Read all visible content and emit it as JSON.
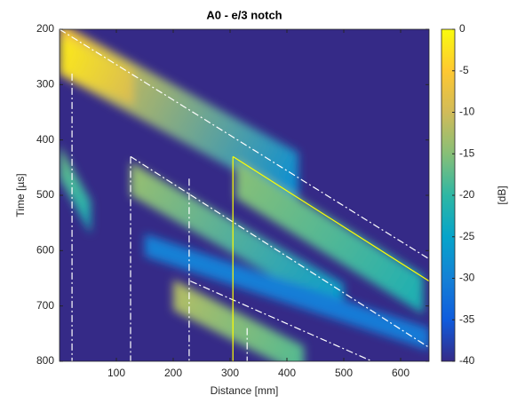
{
  "chart_data": {
    "type": "heatmap",
    "title": "A0 - e/3 notch",
    "xlabel": "Distance [mm]",
    "ylabel": "Time [µs]",
    "colorbar_label": "[dB]",
    "xlim": [
      0,
      650
    ],
    "xticks": [
      100,
      200,
      300,
      400,
      500,
      600
    ],
    "ylim": [
      200,
      800
    ],
    "yticks": [
      200,
      300,
      400,
      500,
      600,
      700,
      800
    ],
    "y_reversed": true,
    "clim": [
      -40,
      0
    ],
    "cticks": [
      0,
      -5,
      -10,
      -15,
      -20,
      -25,
      -30,
      -35,
      -40
    ],
    "colormap": [
      "#352a87",
      "#0f5cdd",
      "#1481d6",
      "#06a4ca",
      "#2eb7a4",
      "#87bf77",
      "#d1bb59",
      "#fec832",
      "#f9fb0e"
    ],
    "streaks": [
      {
        "x": [
          0,
          420
        ],
        "y": [
          235,
          470
        ],
        "thickness": 95,
        "db": [
          -6,
          -28
        ]
      },
      {
        "x": [
          0,
          130
        ],
        "y": [
          245,
          305
        ],
        "thickness": 65,
        "db": [
          -2,
          -9
        ]
      },
      {
        "x": [
          0,
          55
        ],
        "y": [
          440,
          540
        ],
        "thickness": 60,
        "db": [
          -17,
          -22
        ]
      },
      {
        "x": [
          125,
          500
        ],
        "y": [
          470,
          690
        ],
        "thickness": 60,
        "db": [
          -14,
          -26
        ]
      },
      {
        "x": [
          310,
          640
        ],
        "y": [
          470,
          680
        ],
        "thickness": 70,
        "db": [
          -15,
          -22
        ]
      },
      {
        "x": [
          200,
          430
        ],
        "y": [
          680,
          800
        ],
        "thickness": 55,
        "db": [
          -12,
          -18
        ]
      },
      {
        "x": [
          150,
          650
        ],
        "y": [
          590,
          760
        ],
        "thickness": 40,
        "db": [
          -30,
          -31
        ]
      }
    ],
    "lines": [
      {
        "x": [
          0,
          650
        ],
        "y": [
          200,
          615
        ],
        "color": "#ffffff",
        "style": "dashdot"
      },
      {
        "x": [
          125,
          650
        ],
        "y": [
          430,
          775
        ],
        "color": "#ffffff",
        "style": "dashdot"
      },
      {
        "x": [
          230,
          550
        ],
        "y": [
          655,
          800
        ],
        "color": "#ffffff",
        "style": "dashdot"
      },
      {
        "x": [
          22,
          22
        ],
        "y": [
          280,
          800
        ],
        "color": "#ffffff",
        "style": "dashdot"
      },
      {
        "x": [
          125,
          125
        ],
        "y": [
          430,
          800
        ],
        "color": "#ffffff",
        "style": "dashdot"
      },
      {
        "x": [
          228,
          228
        ],
        "y": [
          470,
          800
        ],
        "color": "#ffffff",
        "style": "dashdot"
      },
      {
        "x": [
          330,
          330
        ],
        "y": [
          740,
          800
        ],
        "color": "#ffffff",
        "style": "dashdot"
      },
      {
        "x": [
          305,
          305
        ],
        "y": [
          430,
          800
        ],
        "color": "#ffff00",
        "style": "solid"
      },
      {
        "x": [
          305,
          650
        ],
        "y": [
          430,
          655
        ],
        "color": "#ffff00",
        "style": "solid"
      }
    ]
  }
}
